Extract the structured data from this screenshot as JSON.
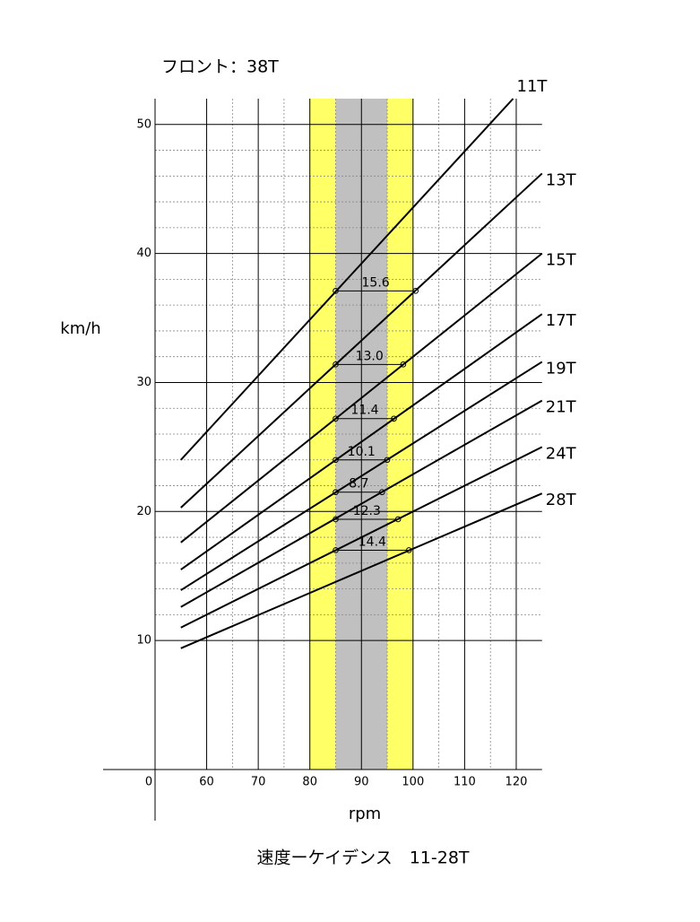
{
  "chart_data": {
    "type": "line",
    "title": "フロント：38T",
    "y_label": "km/h",
    "x_label": "rpm",
    "caption": "速度ーケイデンス　11-28T",
    "xlim": [
      50,
      125
    ],
    "xticks": [
      {
        "value": 50,
        "label": "0"
      },
      60,
      70,
      80,
      90,
      100,
      110,
      120
    ],
    "xminor": [
      65,
      75,
      85,
      95,
      105,
      115
    ],
    "ylim": [
      0,
      52
    ],
    "yticks": [
      10,
      20,
      30,
      40,
      50
    ],
    "yminor": [
      12,
      14,
      16,
      18,
      22,
      24,
      26,
      28,
      32,
      34,
      36,
      38,
      42,
      44,
      46,
      48
    ],
    "grid": true,
    "bands": [
      {
        "from": 80,
        "to": 100,
        "color": "#ffff66"
      },
      {
        "from": 85,
        "to": 95,
        "color": "#c0c0c0"
      }
    ],
    "series": [
      {
        "name": "11T",
        "color": "#000000",
        "x": [
          55,
          119.4
        ],
        "values": [
          24.0,
          52.0
        ]
      },
      {
        "name": "13T",
        "color": "#000000",
        "x": [
          55,
          125
        ],
        "values": [
          20.3,
          46.2
        ]
      },
      {
        "name": "15T",
        "color": "#000000",
        "x": [
          55,
          125
        ],
        "values": [
          17.6,
          40.0
        ]
      },
      {
        "name": "17T",
        "color": "#000000",
        "x": [
          55,
          125
        ],
        "values": [
          15.5,
          35.3
        ]
      },
      {
        "name": "19T",
        "color": "#000000",
        "x": [
          55,
          125
        ],
        "values": [
          13.9,
          31.6
        ]
      },
      {
        "name": "21T",
        "color": "#000000",
        "x": [
          55,
          125
        ],
        "values": [
          12.6,
          28.6
        ]
      },
      {
        "name": "24T",
        "color": "#000000",
        "x": [
          55,
          125
        ],
        "values": [
          11.0,
          25.0
        ]
      },
      {
        "name": "28T",
        "color": "#000000",
        "x": [
          55,
          125
        ],
        "values": [
          9.4,
          21.4
        ]
      }
    ],
    "gear_steps": [
      {
        "speed": 37.1,
        "rpm_from": 85,
        "rpm_to": 100.5,
        "label": "15.6"
      },
      {
        "speed": 31.4,
        "rpm_from": 85,
        "rpm_to": 98.1,
        "label": "13.0"
      },
      {
        "speed": 27.2,
        "rpm_from": 85,
        "rpm_to": 96.3,
        "label": "11.4"
      },
      {
        "speed": 24.0,
        "rpm_from": 85,
        "rpm_to": 95.0,
        "label": "10.1"
      },
      {
        "speed": 21.5,
        "rpm_from": 85,
        "rpm_to": 94.0,
        "label": "8.7"
      },
      {
        "speed": 19.4,
        "rpm_from": 85,
        "rpm_to": 97.1,
        "label": "12.3"
      },
      {
        "speed": 17.0,
        "rpm_from": 85,
        "rpm_to": 99.2,
        "label": "14.4"
      }
    ]
  }
}
